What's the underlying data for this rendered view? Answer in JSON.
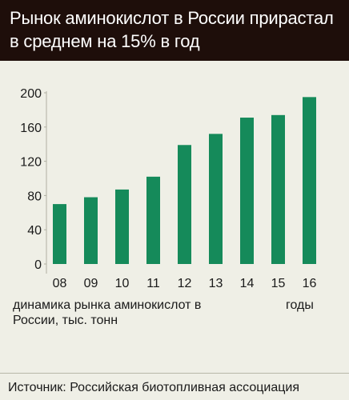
{
  "title": "Рынок аминокислот в России прирастал\nв среднем на 15% в год",
  "colors": {
    "header_bg": "#1e0e0a",
    "panel_bg": "#efefe6",
    "bar": "#158a5a",
    "text": "#1a1a1a"
  },
  "chart_data": {
    "type": "bar",
    "categories": [
      "08",
      "09",
      "10",
      "11",
      "12",
      "13",
      "14",
      "15",
      "16"
    ],
    "values": [
      70,
      78,
      87,
      102,
      139,
      152,
      171,
      174,
      195
    ],
    "ylim": [
      0,
      200
    ],
    "yticks": [
      0,
      40,
      80,
      120,
      160,
      200
    ],
    "grid": false
  },
  "caption": "динамика рынка аминокислот в России, тыс. тонн",
  "x_unit": "годы",
  "source": "Источник: Российская биотопливная ассоциация"
}
